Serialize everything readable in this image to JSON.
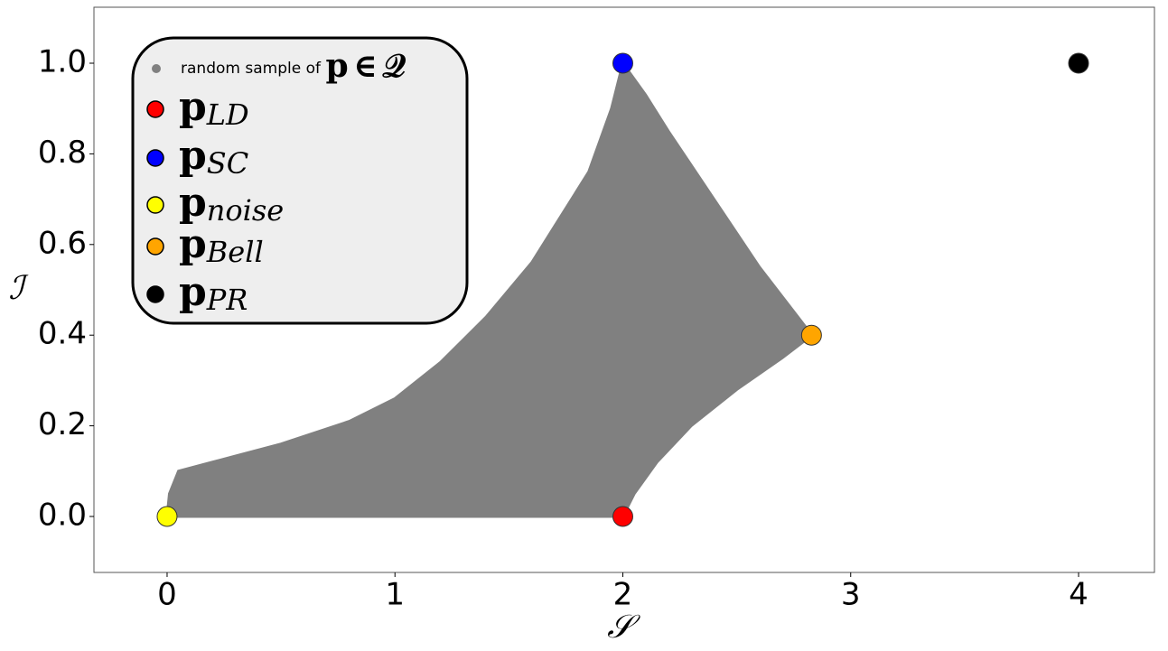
{
  "chart_data": {
    "type": "scatter",
    "xlabel": "𝒮",
    "ylabel": "ℐ",
    "xlim": [
      -0.321,
      4.333
    ],
    "ylim": [
      -0.1235,
      1.1235
    ],
    "xticks": [
      0,
      1,
      2,
      3,
      4
    ],
    "yticks": [
      {
        "value": 0,
        "label": "0.0"
      },
      0.2,
      0.4,
      0.6,
      0.8,
      {
        "value": 1,
        "label": "1.0"
      }
    ],
    "series": [
      {
        "name": "random sample of 𝐩 ∈ 𝒬",
        "color": "#808080",
        "region": true,
        "x": [
          0,
          2,
          2.05,
          2.15,
          2.3,
          2.5,
          2.7,
          2.83,
          2.6,
          2.4,
          2.2,
          2.1,
          2,
          1.95,
          1.85,
          1.75,
          1.6,
          1.5,
          1.4,
          1.2,
          1.0,
          0.8,
          0.5,
          0.2,
          0.05,
          0.01,
          0
        ],
        "y": [
          0,
          0,
          0.05,
          0.12,
          0.2,
          0.28,
          0.35,
          0.4,
          0.55,
          0.7,
          0.85,
          0.93,
          1,
          0.9,
          0.76,
          0.68,
          0.56,
          0.5,
          0.44,
          0.34,
          0.26,
          0.21,
          0.16,
          0.12,
          0.1,
          0.05,
          0
        ]
      },
      {
        "name": "𝐩LD",
        "color": "#ff0000",
        "x": [
          2
        ],
        "y": [
          0
        ]
      },
      {
        "name": "𝐩SC",
        "color": "#0000ff",
        "x": [
          2
        ],
        "y": [
          1
        ]
      },
      {
        "name": "𝐩noise",
        "color": "#ffff00",
        "x": [
          0
        ],
        "y": [
          0
        ]
      },
      {
        "name": "𝐩Bell",
        "color": "#ffa500",
        "x": [
          2.828
        ],
        "y": [
          0.4
        ]
      },
      {
        "name": "𝐩PR",
        "color": "#000000",
        "x": [
          4
        ],
        "y": [
          1
        ]
      }
    ]
  }
}
